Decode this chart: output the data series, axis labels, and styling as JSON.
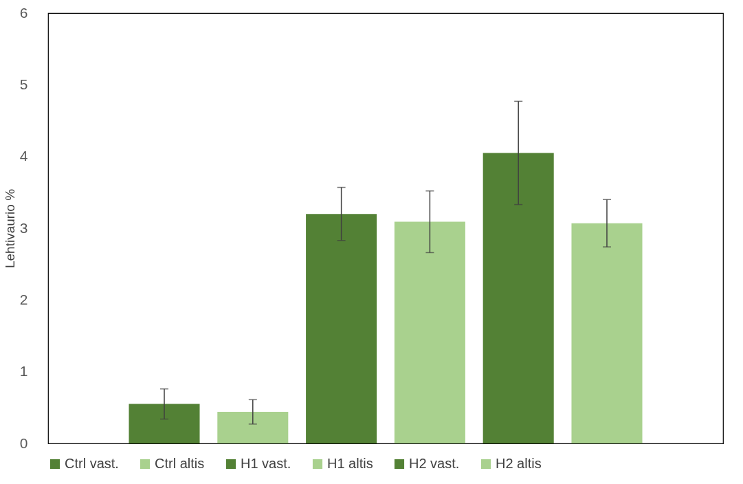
{
  "chart_data": {
    "type": "bar",
    "ylabel": "Lehtivaurio %",
    "categories": [
      null
    ],
    "series": [
      {
        "name": "Ctrl vast.",
        "color": "#538135",
        "values": [
          0.55
        ],
        "errors": [
          0.21
        ]
      },
      {
        "name": "Ctrl altis",
        "color": "#a9d18e",
        "values": [
          0.44
        ],
        "errors": [
          0.17
        ]
      },
      {
        "name": "H1 vast.",
        "color": "#538135",
        "values": [
          3.2
        ],
        "errors": [
          0.37
        ]
      },
      {
        "name": "H1 altis",
        "color": "#a9d18e",
        "values": [
          3.09
        ],
        "errors": [
          0.43
        ]
      },
      {
        "name": "H2 vast.",
        "color": "#538135",
        "values": [
          4.05
        ],
        "errors": [
          0.72
        ]
      },
      {
        "name": "H2 altis",
        "color": "#a9d18e",
        "values": [
          3.07
        ],
        "errors": [
          0.33
        ]
      }
    ],
    "ylim": [
      0,
      6
    ],
    "yticks": [
      0,
      1,
      2,
      3,
      4,
      5,
      6
    ],
    "grid": false,
    "legend": "bottom"
  }
}
